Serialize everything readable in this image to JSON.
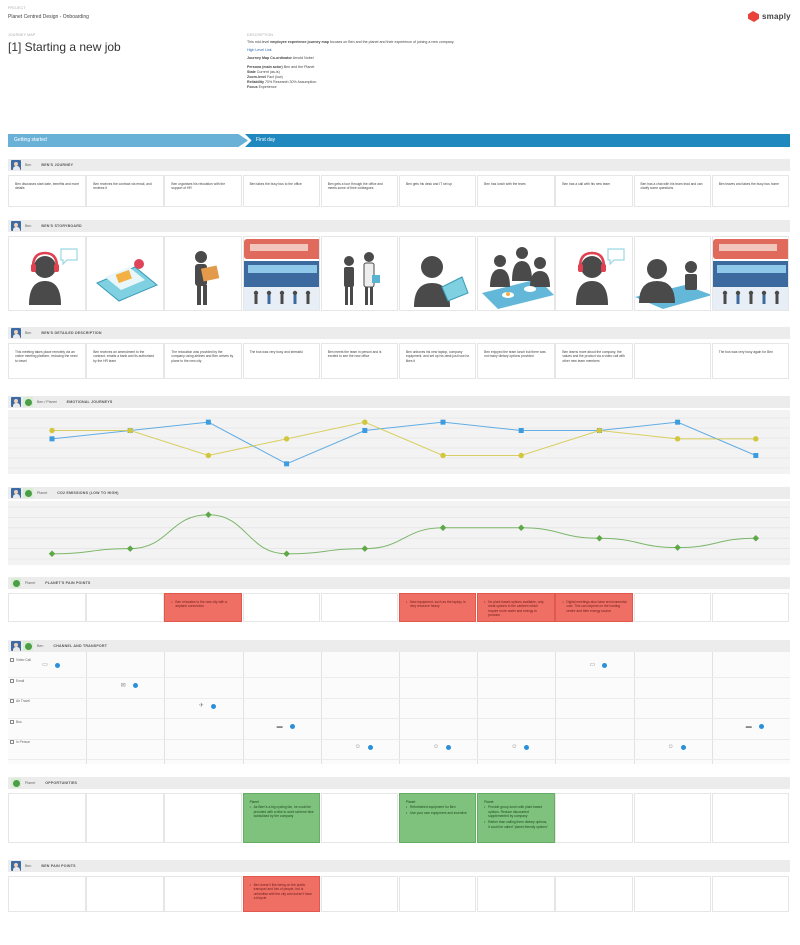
{
  "header": {
    "project_label": "PROJECT",
    "project_name": "Planet Centred Design - Onboarding",
    "journey_label": "JOURNEY MAP",
    "journey_title": "[1] Starting a new job",
    "description_label": "DESCRIPTION",
    "description_pre": "This mid-level ",
    "description_bold": "employee experience journey map",
    "description_post": " focuses on Ben and the planet and their experience of joining a new company.",
    "link_text": "High Level Link",
    "coordinator_key": "Journey Map Co-ordinator",
    "coordinator_val": "Arnold Nobel",
    "persona_key": "Persona (main actor)",
    "persona_val": "Ben and the Planet",
    "state_key": "State",
    "state_val": "Current (as-is)",
    "zoom_key": "Zoom-level",
    "zoom_val": "Fact (low)",
    "reliability_key": "Reliability",
    "reliability_val": "70% Research 30% Assumption",
    "focus_key": "Focus",
    "focus_val": "Experience",
    "logo_text": "smaply"
  },
  "phases": [
    {
      "label": "Getting started"
    },
    {
      "label": "First day"
    }
  ],
  "lanes": {
    "journey": {
      "actor": "Ben",
      "title": "BEN'S JOURNEY"
    },
    "storyboard": {
      "actor": "Ben",
      "title": "BEN'S STORYBOARD"
    },
    "detailed": {
      "actor": "Ben",
      "title": "BEN'S DETAILED DESCRIPTION"
    },
    "emotional": {
      "actor": "Ben / Planet",
      "title": "EMOTIONAL JOURNEYS"
    },
    "co2": {
      "actor": "Planet",
      "title": "CO2 EMISSIONS (LOW TO HIGH)"
    },
    "planet_pain": {
      "actor": "Planet",
      "title": "PLANET'S PAIN POINTS"
    },
    "channel": {
      "actor": "Ben",
      "title": "CHANNEL AND TRANSPORT"
    },
    "opportunities": {
      "actor": "Planet",
      "title": "OPPORTUNITIES"
    },
    "ben_pain": {
      "actor": "Ben",
      "title": "BEN PAIN POINTS"
    }
  },
  "journey_cells": [
    "Ben discusses start date, benefits and more details",
    "Ben receives the contract via email, and reviews it",
    "Ben organises his relocation with the support of HR",
    "Ben takes the busy bus to the office",
    "Ben gets a tour through the office and meets some of their colleagues",
    "Ben gets his desk and IT set up",
    "Ben has lunch with the team",
    "Ben has a call with his new team",
    "Ben has a chat with his team lead and can clarify some questions",
    "Ben leaves and takes the busy bus home"
  ],
  "detailed_cells": [
    "This meeting takes place remotely via an online meeting platform, reducing the need to travel",
    "Ben receives an amendment to the contract, emails a bank and its authorised by the HR team",
    "The relocation was provided by the company using airlines and Ben arrives by plane to the new city",
    "The bus was very busy and stressful",
    "Ben meets the team in person and is excited to see the new office",
    "Ben unboxes his new laptop, company equipment, and set up his desk just how he likes it",
    "Ben enjoyed the team lunch but there was not many dietary options provided",
    "Ben learns more about the company, the values and the product via a video call with other new team members",
    "",
    "The bus was very busy again for Ben"
  ],
  "storyboard": [
    {
      "icon": "headset-person-icon"
    },
    {
      "icon": "laptop-email-icon"
    },
    {
      "icon": "person-carrying-box-icon"
    },
    {
      "icon": "bus-station-icon"
    },
    {
      "icon": "people-meeting-icon"
    },
    {
      "icon": "person-laptop-icon"
    },
    {
      "icon": "team-lunch-icon"
    },
    {
      "icon": "headset-person-icon"
    },
    {
      "icon": "person-desk-chat-icon"
    },
    {
      "icon": "bus-station-icon"
    }
  ],
  "planet_pain_cells": [
    [],
    [],
    [
      "Ben relocates to the new city with a airplane connection"
    ],
    [],
    [],
    [
      "New equipment, such as the laptop, is very resource heavy"
    ],
    [
      "No plant based options available, only meat options in the canteen which require more water and energy to produce"
    ],
    [
      "Digital meetings also have environmental cost. This can depend on the hosting centre and their energy source"
    ],
    [],
    []
  ],
  "opportunity_cells": [
    {
      "title": "",
      "items": []
    },
    {
      "title": "",
      "items": []
    },
    {
      "title": "",
      "items": []
    },
    {
      "title": "Planet",
      "items": [
        "As Bern's a big cycling fan, he could be provided with a bike to work scheme bike subsidised by the company"
      ]
    },
    {
      "title": "",
      "items": []
    },
    {
      "title": "Planet",
      "items": [
        "Refurbished equipment for Ben",
        "Use your own equipment and incentive"
      ]
    },
    {
      "title": "Planet",
      "items": [
        "Provide group lunch with plant based options. Reduce discounted supplemented by company",
        "Rather than calling them dietary options, it could be called \"planet friendly options\""
      ]
    },
    {
      "title": "",
      "items": []
    },
    {
      "title": "",
      "items": []
    },
    {
      "title": "",
      "items": []
    }
  ],
  "ben_pain_cells": [
    [],
    [],
    [],
    [
      "Ben doesn't like being on the public transport and lots of people, but is unfamiliar with the city and doesn't have a bicycle"
    ],
    [],
    [],
    [],
    [],
    [],
    []
  ],
  "channels": [
    {
      "label": "Video Call",
      "icon": "video-icon",
      "marks": [
        {
          "col": 0,
          "glyph": "▭"
        },
        {
          "col": 7,
          "glyph": "▭"
        }
      ]
    },
    {
      "label": "Email",
      "icon": "email-icon",
      "marks": [
        {
          "col": 1,
          "glyph": "✉"
        }
      ]
    },
    {
      "label": "Air Travel",
      "icon": "plane-icon",
      "marks": [
        {
          "col": 2,
          "glyph": "✈"
        }
      ]
    },
    {
      "label": "Bus",
      "icon": "bus-icon",
      "marks": [
        {
          "col": 3,
          "glyph": "▬"
        },
        {
          "col": 9,
          "glyph": "▬"
        }
      ]
    },
    {
      "label": "In Person",
      "icon": "people-icon",
      "marks": [
        {
          "col": 4,
          "glyph": "☺"
        },
        {
          "col": 5,
          "glyph": "☺"
        },
        {
          "col": 6,
          "glyph": "☺"
        },
        {
          "col": 8,
          "glyph": "☺"
        }
      ]
    }
  ],
  "chart_data": [
    {
      "type": "line",
      "x": [
        1,
        2,
        3,
        4,
        5,
        6,
        7,
        8,
        9,
        10
      ],
      "ylim": [
        -3,
        3
      ],
      "series": [
        {
          "marker": "square",
          "color": "#3d9be0",
          "values": [
            0.5,
            1.5,
            2.5,
            -2.5,
            1.5,
            2.5,
            1.5,
            1.5,
            2.5,
            -1.5
          ]
        },
        {
          "marker": "circle",
          "color": "#d2c63c",
          "values": [
            1.5,
            1.5,
            -1.5,
            0.5,
            2.5,
            -1.5,
            -1.5,
            1.5,
            0.5,
            0.5
          ]
        }
      ]
    },
    {
      "type": "line",
      "x": [
        1,
        2,
        3,
        4,
        5,
        6,
        7,
        8,
        9,
        10
      ],
      "ylim": [
        0,
        10
      ],
      "series": [
        {
          "marker": "diamond",
          "color": "#5fa847",
          "values": [
            1,
            2,
            8.5,
            1,
            2,
            6,
            6,
            4,
            2.2,
            4
          ]
        }
      ]
    }
  ]
}
